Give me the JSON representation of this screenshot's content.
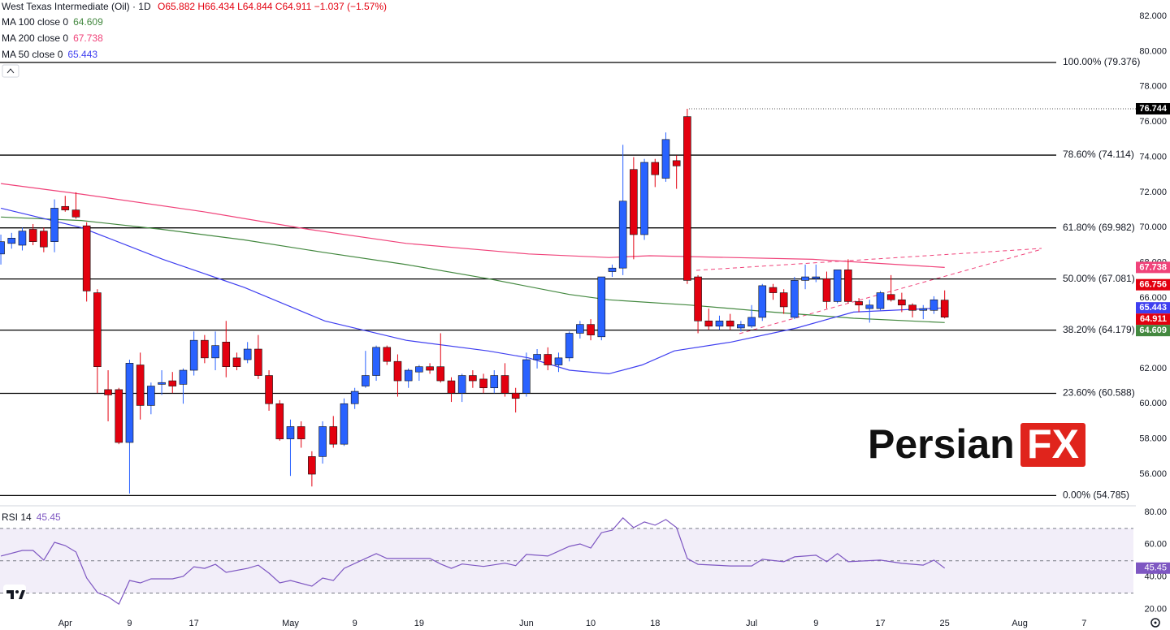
{
  "chart_data": {
    "type": "candlestick",
    "title": "West Texas Intermediate (Oil) · 1D",
    "ohlc": "O65.882 H66.434 L64.844 C64.911 −1.037 (−1.57%)",
    "up_color": "#2962ff",
    "down_color": "#e3000f",
    "xlim": [
      -0.08,
      105.6
    ],
    "ylim": [
      54.25,
      82.92
    ],
    "yticks": [
      {
        "value": 56,
        "label": "56.000"
      },
      {
        "value": 58,
        "label": "58.000"
      },
      {
        "value": 60,
        "label": "60.000"
      },
      {
        "value": 62,
        "label": "62.000"
      },
      {
        "value": 64,
        "label": "64.000"
      },
      {
        "value": 66,
        "label": "66.000"
      },
      {
        "value": 68,
        "label": "68.000"
      },
      {
        "value": 70,
        "label": "70.000"
      },
      {
        "value": 72,
        "label": "72.000"
      },
      {
        "value": 74,
        "label": "74.000"
      },
      {
        "value": 76,
        "label": "76.000"
      },
      {
        "value": 78,
        "label": "78.000"
      },
      {
        "value": 80,
        "label": "80.000"
      },
      {
        "value": 82,
        "label": "82.000"
      }
    ],
    "xticks": [
      {
        "value": 6,
        "label": "Apr"
      },
      {
        "value": 12,
        "label": "9"
      },
      {
        "value": 18,
        "label": "17"
      },
      {
        "value": 27,
        "label": "May"
      },
      {
        "value": 33,
        "label": "9"
      },
      {
        "value": 39,
        "label": "19"
      },
      {
        "value": 49,
        "label": "Jun"
      },
      {
        "value": 55,
        "label": "10"
      },
      {
        "value": 61,
        "label": "18"
      },
      {
        "value": 70,
        "label": "Jul"
      },
      {
        "value": 76,
        "label": "9"
      },
      {
        "value": 82,
        "label": "17"
      },
      {
        "value": 88,
        "label": "25"
      },
      {
        "value": 95,
        "label": "Aug"
      },
      {
        "value": 101,
        "label": "7"
      }
    ],
    "candles": {
      "open": [
        68.5,
        69.1,
        69.0,
        69.9,
        69.8,
        69.2,
        71.2,
        71.0,
        70.1,
        66.3,
        60.8,
        60.8,
        57.8,
        62.2,
        59.9,
        61.1,
        61.3,
        61.1,
        61.9,
        63.6,
        62.6,
        63.5,
        62.6,
        62.5,
        63.1,
        61.6,
        60.0,
        58.0,
        58.7,
        57.0,
        57.0,
        58.7,
        57.7,
        60.0,
        61.0,
        61.6,
        63.2,
        62.4,
        61.3,
        61.8,
        62.1,
        62.1,
        61.3,
        60.6,
        61.6,
        61.4,
        60.9,
        61.6,
        60.6,
        60.6,
        62.5,
        62.8,
        62.2,
        62.6,
        64.0,
        64.5,
        63.8,
        67.5,
        67.7,
        73.3,
        69.6,
        73.7,
        72.8,
        73.8,
        76.3,
        67.2,
        64.7,
        64.4,
        64.7,
        64.3,
        64.4,
        64.9,
        66.6,
        66.3,
        64.9,
        67.0,
        67.1,
        67.1,
        65.8,
        67.6,
        65.8,
        65.4,
        65.4,
        66.2,
        65.9,
        65.6,
        65.3,
        65.3,
        65.882
      ],
      "high": [
        69.6,
        69.7,
        70.0,
        70.2,
        70.0,
        71.6,
        71.8,
        72.0,
        70.3,
        66.5,
        61.9,
        60.9,
        62.5,
        62.9,
        61.2,
        61.9,
        61.8,
        62.0,
        64.1,
        63.9,
        64.1,
        64.7,
        62.9,
        63.5,
        63.9,
        61.9,
        60.2,
        59.1,
        59.0,
        57.3,
        59.0,
        59.3,
        60.3,
        60.9,
        63.0,
        63.3,
        63.3,
        62.8,
        62.0,
        62.2,
        62.3,
        64.0,
        61.5,
        61.7,
        61.9,
        61.7,
        61.9,
        62.3,
        60.9,
        62.9,
        63.1,
        63.2,
        62.9,
        64.1,
        64.7,
        64.8,
        67.2,
        67.9,
        74.7,
        74.0,
        73.9,
        73.9,
        75.4,
        74.1,
        76.744,
        67.3,
        65.4,
        65.0,
        65.1,
        64.7,
        65.6,
        66.8,
        66.8,
        66.5,
        67.2,
        67.9,
        67.9,
        67.5,
        67.6,
        68.2,
        66.0,
        65.9,
        66.4,
        67.3,
        66.3,
        65.7,
        65.6,
        66.1,
        66.434
      ],
      "low": [
        67.9,
        68.8,
        68.7,
        69.0,
        68.6,
        68.6,
        70.9,
        70.5,
        65.8,
        60.6,
        59.0,
        57.7,
        54.9,
        59.1,
        59.4,
        60.5,
        60.6,
        60.0,
        61.6,
        62.3,
        61.9,
        61.5,
        61.9,
        62.3,
        61.4,
        59.6,
        57.9,
        55.9,
        57.5,
        55.3,
        56.6,
        57.5,
        57.6,
        59.7,
        60.9,
        61.3,
        62.2,
        60.4,
        60.9,
        61.3,
        61.7,
        61.2,
        60.1,
        60.1,
        60.9,
        60.6,
        60.6,
        60.4,
        59.5,
        60.4,
        62.0,
        61.9,
        61.8,
        62.4,
        63.7,
        63.6,
        63.6,
        67.2,
        67.3,
        68.2,
        69.3,
        72.3,
        72.6,
        72.2,
        66.8,
        64.0,
        64.2,
        64.2,
        64.2,
        64.1,
        64.3,
        64.7,
        65.9,
        65.1,
        64.8,
        66.5,
        66.9,
        65.4,
        65.7,
        65.7,
        65.2,
        64.6,
        65.3,
        65.8,
        65.2,
        64.9,
        64.8,
        65.1,
        64.844
      ],
      "close": [
        69.2,
        69.4,
        69.8,
        69.2,
        68.9,
        71.1,
        71.0,
        70.6,
        66.4,
        62.1,
        60.5,
        57.8,
        62.3,
        59.9,
        61.0,
        61.2,
        61.0,
        61.9,
        63.6,
        62.6,
        63.3,
        62.1,
        62.1,
        63.1,
        61.6,
        60.0,
        58.0,
        58.7,
        58.0,
        56.0,
        58.7,
        57.7,
        60.0,
        60.7,
        61.6,
        63.2,
        62.4,
        61.3,
        61.9,
        62.1,
        61.9,
        61.3,
        60.6,
        61.6,
        61.3,
        60.9,
        61.6,
        60.6,
        60.3,
        62.5,
        62.8,
        62.2,
        62.6,
        64.0,
        64.5,
        63.9,
        67.2,
        67.7,
        71.5,
        69.6,
        73.7,
        73.0,
        75.0,
        73.5,
        67.0,
        64.7,
        64.4,
        64.7,
        64.4,
        64.5,
        64.9,
        66.7,
        66.3,
        65.5,
        67.0,
        67.2,
        67.2,
        65.8,
        67.6,
        65.8,
        65.6,
        65.6,
        66.3,
        65.9,
        65.6,
        65.3,
        65.4,
        65.9,
        64.911
      ]
    },
    "series": [
      {
        "name": "MA 100 close 0",
        "color": "#43883f",
        "x": [
          0,
          7.5,
          15,
          22.7,
          30,
          37.8,
          45.4,
          53,
          56.7,
          64.3,
          71.9,
          79.5,
          88
        ],
        "values": [
          70.6,
          70.4,
          69.9,
          69.3,
          68.6,
          67.9,
          67.1,
          66.2,
          65.9,
          65.6,
          65.2,
          64.85,
          64.609
        ]
      },
      {
        "name": "MA 200 close 0",
        "color": "#f0437a",
        "x": [
          0,
          7.5,
          18.9,
          28.7,
          37.8,
          49.2,
          56.7,
          60.5,
          64.3,
          75.7,
          88
        ],
        "values": [
          72.5,
          71.9,
          70.9,
          69.9,
          69.1,
          68.5,
          68.3,
          68.4,
          68.35,
          68.2,
          67.738
        ]
      },
      {
        "name": "MA 50 close 0",
        "color": "#3f3ff0",
        "x": [
          0,
          7.5,
          15.1,
          22.7,
          30.2,
          37.8,
          45.4,
          49.2,
          53,
          56.7,
          59.8,
          62.8,
          68.1,
          74.2,
          79.5,
          88
        ],
        "values": [
          71.1,
          70.0,
          68.2,
          66.6,
          64.7,
          63.6,
          63.0,
          62.6,
          61.9,
          61.7,
          62.2,
          63.0,
          63.5,
          64.3,
          65.2,
          65.443
        ]
      }
    ],
    "levels": [
      {
        "label": "100.00% (79.376)",
        "value": 79.376
      },
      {
        "label": "78.60% (74.114)",
        "value": 74.114
      },
      {
        "label": "61.80% (69.982)",
        "value": 69.982
      },
      {
        "label": "50.00% (67.081)",
        "value": 67.081
      },
      {
        "label": "38.20% (64.179)",
        "value": 64.179
      },
      {
        "label": "23.60% (60.588)",
        "value": 60.588
      },
      {
        "label": "0.00% (54.785)",
        "value": 54.785
      }
    ],
    "price_tags": [
      {
        "value": 76.744,
        "color": "#000000"
      },
      {
        "value": 66.756,
        "color": "#e3000f"
      }
    ],
    "rsi": {
      "name": "RSI 14",
      "color": "#7e57c2",
      "ylim": [
        15.2,
        84.5
      ],
      "yticks": [
        {
          "value": 20,
          "label": "20.00"
        },
        {
          "value": 40,
          "label": "40.00"
        },
        {
          "value": 60,
          "label": "60.00"
        },
        {
          "value": 80,
          "label": "80.00"
        }
      ],
      "band": [
        30,
        70
      ],
      "mid": 50,
      "x": [
        0,
        2,
        3,
        4,
        5,
        6,
        7,
        8,
        9,
        10,
        11,
        12,
        13,
        14,
        16,
        17,
        18,
        19,
        20,
        21,
        23,
        24,
        25,
        26,
        27,
        29,
        30,
        31,
        32,
        34,
        35,
        36,
        38,
        40,
        41,
        42,
        43,
        45,
        47,
        48,
        49,
        51,
        53,
        54,
        55,
        56,
        57,
        58,
        59,
        60,
        61,
        62,
        63,
        64,
        65,
        68,
        70,
        71,
        73,
        74,
        76,
        77,
        78,
        79,
        82,
        84,
        86,
        87,
        88
      ],
      "values": [
        52.9,
        56.4,
        56.4,
        50.4,
        61.4,
        59.4,
        55.4,
        39.3,
        30.3,
        27.7,
        23.2,
        37.8,
        36.3,
        38.8,
        38.8,
        40.3,
        46.3,
        45.3,
        47.8,
        42.8,
        45.3,
        47.3,
        42.3,
        36.3,
        37.8,
        34.3,
        39.3,
        37.8,
        45.3,
        51.4,
        54.4,
        51.4,
        51.4,
        51.4,
        48,
        45.3,
        48,
        46.5,
        48.5,
        47,
        53.9,
        52.9,
        58.9,
        60.4,
        57.9,
        67.4,
        68.9,
        76.5,
        70.5,
        74,
        72,
        75.5,
        70.5,
        51.4,
        47.8,
        46.8,
        46.8,
        50.9,
        49.4,
        52.4,
        53.4,
        49.4,
        54.4,
        49.4,
        50.4,
        48.4,
        47.3,
        50.4,
        45.45
      ]
    },
    "logo": [
      "Persian",
      "FX"
    ]
  }
}
